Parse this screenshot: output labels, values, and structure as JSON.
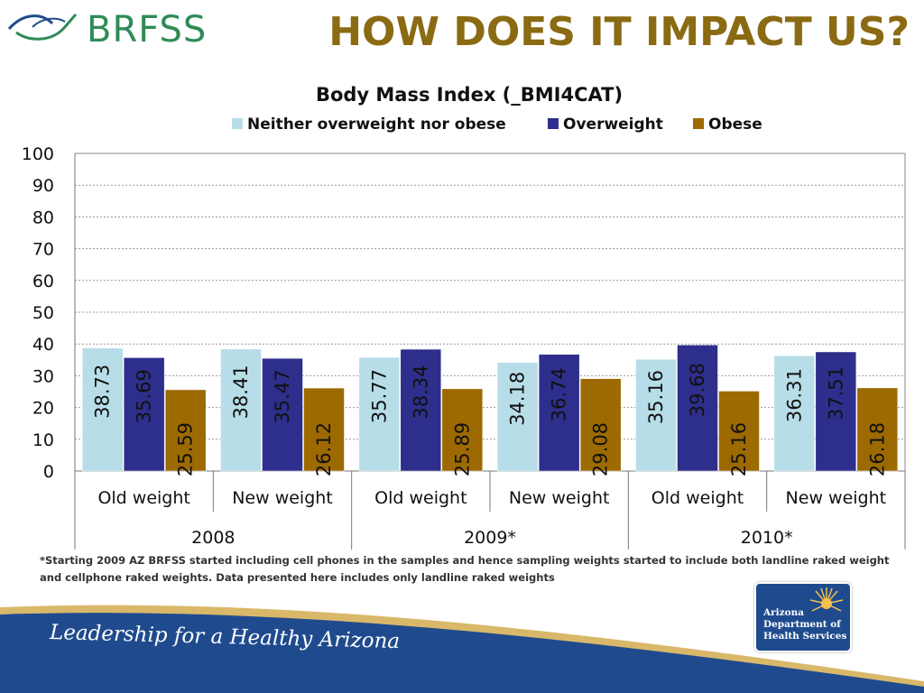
{
  "header": {
    "brand": "BRFSS",
    "title": "HOW DOES IT IMPACT US?"
  },
  "footer": {
    "tagline": "Leadership for a Healthy Arizona",
    "org_line1": "Arizona",
    "org_line2": "Department of",
    "org_line3": "Health Services",
    "note_line1": "*Starting 2009 AZ BRFSS started including cell phones in the samples and hence sampling weights started to include both landline raked weight",
    "note_line2": "and cellphone raked weights. Data presented here includes only landline raked weights"
  },
  "colors": {
    "title": "#8a6a12",
    "neither": "#b7dde8",
    "overweight": "#2e2e8c",
    "obese": "#9c6a00",
    "footer_blue": "#1f4b8e"
  },
  "chart_data": {
    "type": "bar",
    "title": "Body Mass Index (_BMI4CAT)",
    "legend_position": "top",
    "ylim": [
      0,
      100
    ],
    "yticks": [
      0,
      10,
      20,
      30,
      40,
      50,
      60,
      70,
      80,
      90,
      100
    ],
    "grid": true,
    "categories": [
      "Old weight",
      "New weight",
      "Old weight",
      "New weight",
      "Old weight",
      "New weight"
    ],
    "groups": [
      "2008",
      "2009*",
      "2010*"
    ],
    "series": [
      {
        "name": "Neither overweight nor obese",
        "values": [
          38.73,
          38.41,
          35.77,
          34.18,
          35.16,
          36.31
        ]
      },
      {
        "name": "Overweight",
        "values": [
          35.69,
          35.47,
          38.34,
          36.74,
          39.68,
          37.51
        ]
      },
      {
        "name": "Obese",
        "values": [
          25.59,
          26.12,
          25.89,
          29.08,
          25.16,
          26.18
        ]
      }
    ]
  }
}
